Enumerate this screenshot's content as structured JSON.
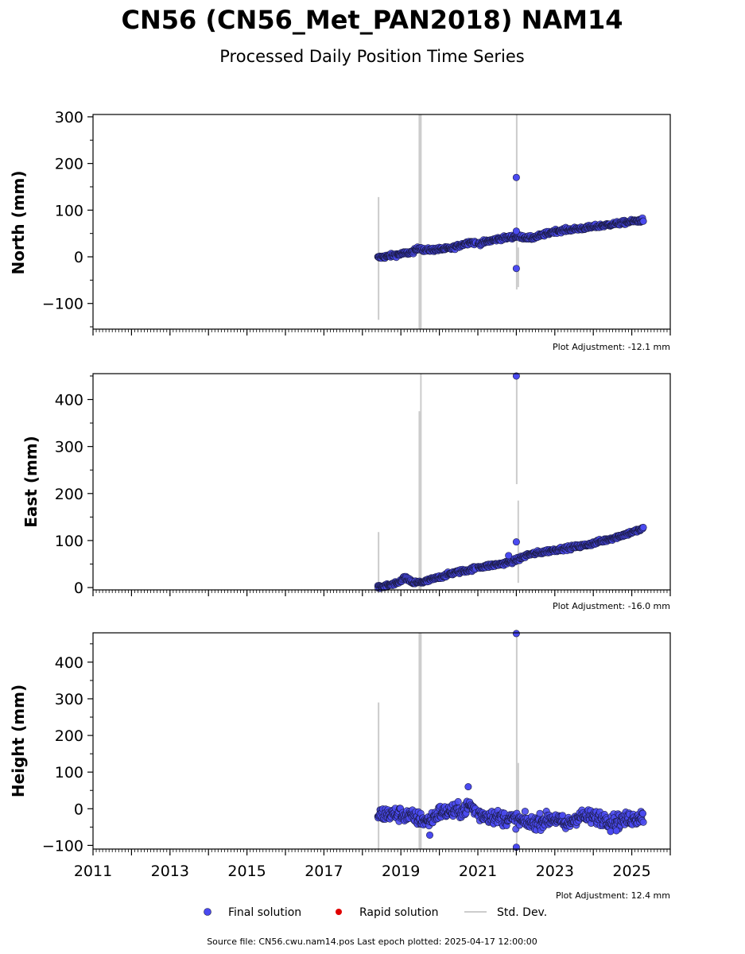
{
  "title": "CN56 (CN56_Met_PAN2018) NAM14",
  "subtitle": "Processed Daily Position Time Series",
  "legend": {
    "final": "Final solution",
    "rapid": "Rapid solution",
    "std": "Std. Dev."
  },
  "source_line": "Source file: CN56.cwu.nam14.pos  Last epoch plotted: 2025-04-17 12:00:00",
  "colors": {
    "final": "#4a4af0",
    "rapid": "#e00000",
    "std": "#cccccc",
    "edge": "#1a1a40"
  },
  "chart_data": [
    {
      "type": "scatter",
      "ylabel": "North (mm)",
      "adjustment": "Plot Adjustment: -12.1 mm",
      "xlim": [
        2011,
        2026
      ],
      "ylim": [
        -155,
        305
      ],
      "yticks": [
        {
          "v": -100,
          "label": "−100"
        },
        {
          "v": 0,
          "label": "0"
        },
        {
          "v": 100,
          "label": "100"
        },
        {
          "v": 200,
          "label": "200"
        },
        {
          "v": 300,
          "label": "300"
        }
      ],
      "xticks": [],
      "trend": [
        [
          2018.4,
          -2
        ],
        [
          2019.3,
          10
        ],
        [
          2019.5,
          20
        ],
        [
          2019.6,
          14
        ],
        [
          2020.3,
          18
        ],
        [
          2020.8,
          32
        ],
        [
          2021.0,
          28
        ],
        [
          2021.5,
          38
        ],
        [
          2022.0,
          44
        ],
        [
          2022.4,
          40
        ],
        [
          2023.0,
          55
        ],
        [
          2023.8,
          62
        ],
        [
          2024.5,
          70
        ],
        [
          2025.3,
          79
        ]
      ],
      "noise": 3,
      "outliers": [
        [
          2022.0,
          170
        ],
        [
          2022.0,
          -25
        ],
        [
          2022.0,
          55
        ]
      ],
      "stdlines": [
        [
          2018.42,
          -135,
          128
        ],
        [
          2019.48,
          -155,
          305
        ],
        [
          2019.52,
          -155,
          305
        ],
        [
          2022.01,
          -70,
          305
        ],
        [
          2022.05,
          -65,
          20
        ]
      ]
    },
    {
      "type": "scatter",
      "ylabel": "East (mm)",
      "adjustment": "Plot Adjustment: -16.0 mm",
      "xlim": [
        2011,
        2026
      ],
      "ylim": [
        -5,
        455
      ],
      "yticks": [
        {
          "v": 0,
          "label": "0"
        },
        {
          "v": 100,
          "label": "100"
        },
        {
          "v": 200,
          "label": "200"
        },
        {
          "v": 300,
          "label": "300"
        },
        {
          "v": 400,
          "label": "400"
        }
      ],
      "xticks": [],
      "trend": [
        [
          2018.4,
          0
        ],
        [
          2018.9,
          8
        ],
        [
          2019.1,
          22
        ],
        [
          2019.3,
          10
        ],
        [
          2019.6,
          12
        ],
        [
          2020.0,
          22
        ],
        [
          2020.4,
          32
        ],
        [
          2020.8,
          38
        ],
        [
          2021.0,
          43
        ],
        [
          2021.6,
          50
        ],
        [
          2022.0,
          58
        ],
        [
          2022.3,
          70
        ],
        [
          2023.0,
          80
        ],
        [
          2023.8,
          90
        ],
        [
          2024.5,
          105
        ],
        [
          2025.3,
          125
        ]
      ],
      "noise": 3,
      "outliers": [
        [
          2022.0,
          450
        ],
        [
          2022.0,
          97
        ],
        [
          2021.8,
          68
        ]
      ],
      "stdlines": [
        [
          2018.42,
          -5,
          118
        ],
        [
          2019.48,
          -5,
          375
        ],
        [
          2019.52,
          -5,
          455
        ],
        [
          2022.01,
          220,
          455
        ],
        [
          2022.05,
          10,
          185
        ]
      ]
    },
    {
      "type": "scatter",
      "ylabel": "Height (mm)",
      "adjustment": "Plot Adjustment: 12.4 mm",
      "xlim": [
        2011,
        2026
      ],
      "ylim": [
        -110,
        480
      ],
      "yticks": [
        {
          "v": -100,
          "label": "−100"
        },
        {
          "v": 0,
          "label": "0"
        },
        {
          "v": 100,
          "label": "100"
        },
        {
          "v": 200,
          "label": "200"
        },
        {
          "v": 300,
          "label": "300"
        },
        {
          "v": 400,
          "label": "400"
        }
      ],
      "xticks": [
        {
          "v": 2011,
          "label": "2011"
        },
        {
          "v": 2013,
          "label": "2013"
        },
        {
          "v": 2015,
          "label": "2015"
        },
        {
          "v": 2017,
          "label": "2017"
        },
        {
          "v": 2019,
          "label": "2019"
        },
        {
          "v": 2021,
          "label": "2021"
        },
        {
          "v": 2023,
          "label": "2023"
        },
        {
          "v": 2025,
          "label": "2025"
        }
      ],
      "trend": [
        [
          2018.4,
          -15
        ],
        [
          2019.0,
          -15
        ],
        [
          2019.4,
          -25
        ],
        [
          2019.7,
          -35
        ],
        [
          2020.0,
          -10
        ],
        [
          2020.6,
          -5
        ],
        [
          2020.8,
          10
        ],
        [
          2021.0,
          -15
        ],
        [
          2021.6,
          -25
        ],
        [
          2022.0,
          -30
        ],
        [
          2022.4,
          -40
        ],
        [
          2023.0,
          -25
        ],
        [
          2023.3,
          -45
        ],
        [
          2023.6,
          -20
        ],
        [
          2024.2,
          -25
        ],
        [
          2024.6,
          -35
        ],
        [
          2025.3,
          -20
        ]
      ],
      "noise": 14,
      "outliers": [
        [
          2022.0,
          478
        ],
        [
          2022.0,
          -105
        ],
        [
          2020.75,
          60
        ],
        [
          2019.75,
          -72
        ],
        [
          2024.45,
          -62
        ],
        [
          2024.6,
          -60
        ]
      ],
      "stdlines": [
        [
          2018.42,
          -110,
          290
        ],
        [
          2019.48,
          -110,
          480
        ],
        [
          2019.52,
          -110,
          480
        ],
        [
          2022.01,
          -110,
          480
        ],
        [
          2022.05,
          -60,
          125
        ]
      ]
    }
  ]
}
